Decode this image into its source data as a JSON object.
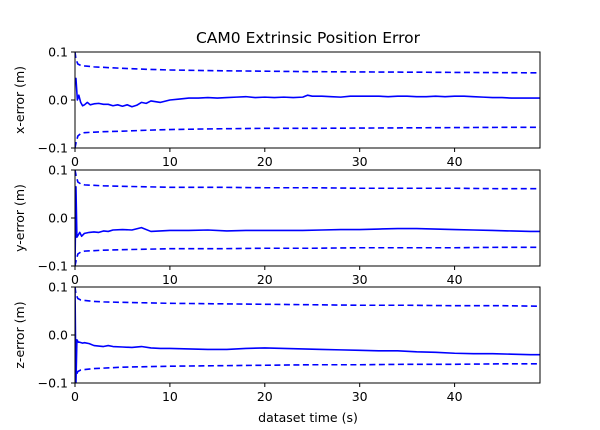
{
  "chart_data": {
    "type": "line",
    "title": "CAM0 Extrinsic Position Error",
    "xlabel": "dataset time (s)",
    "xlim": [
      0,
      49
    ],
    "xticks": [
      0,
      10,
      20,
      30,
      40
    ],
    "xtick_labels": [
      "0",
      "10",
      "20",
      "30",
      "40"
    ],
    "color": "#0000ff",
    "subplots": [
      {
        "ylabel": "x-error (m)",
        "ylim": [
          -0.1,
          0.1
        ],
        "yticks": [
          -0.1,
          0.0,
          0.1
        ],
        "ytick_labels": [
          "−0.1",
          "0.0",
          "0.1"
        ],
        "series": [
          {
            "style": "solid",
            "x": [
              0,
              0.1,
              0.25,
              0.4,
              0.6,
              0.8,
              1,
              1.3,
              1.6,
              2,
              2.5,
              3,
              3.5,
              4,
              4.5,
              5,
              5.5,
              6,
              6.5,
              7,
              7.5,
              8,
              9,
              10,
              11,
              12,
              13,
              14,
              15,
              16,
              17,
              18,
              19,
              20,
              21,
              22,
              23,
              24,
              24.5,
              25,
              26,
              27,
              28,
              29,
              30,
              31,
              32,
              33,
              34,
              35,
              36,
              37,
              38,
              39,
              40,
              41,
              42,
              43,
              44,
              45,
              46,
              47,
              48,
              49
            ],
            "y": [
              0.035,
              0.045,
              0.0,
              0.01,
              -0.005,
              -0.012,
              -0.01,
              -0.005,
              -0.01,
              -0.008,
              -0.007,
              -0.009,
              -0.009,
              -0.012,
              -0.01,
              -0.013,
              -0.01,
              -0.014,
              -0.011,
              -0.005,
              -0.007,
              -0.002,
              -0.005,
              0.0,
              0.002,
              0.004,
              0.004,
              0.005,
              0.004,
              0.005,
              0.006,
              0.007,
              0.005,
              0.006,
              0.005,
              0.006,
              0.005,
              0.006,
              0.01,
              0.008,
              0.008,
              0.007,
              0.006,
              0.008,
              0.008,
              0.008,
              0.008,
              0.007,
              0.008,
              0.008,
              0.007,
              0.007,
              0.008,
              0.007,
              0.008,
              0.008,
              0.007,
              0.006,
              0.005,
              0.005,
              0.004,
              0.004,
              0.004,
              0.004
            ]
          },
          {
            "style": "dashed",
            "x": [
              0,
              0.1,
              0.3,
              0.6,
              1,
              2,
              3,
              5,
              7.5,
              10,
              15,
              20,
              25,
              30,
              35,
              40,
              45,
              49
            ],
            "y": [
              0.1,
              0.085,
              0.075,
              0.072,
              0.071,
              0.069,
              0.068,
              0.066,
              0.064,
              0.0625,
              0.061,
              0.06,
              0.059,
              0.0585,
              0.058,
              0.0575,
              0.057,
              0.0565
            ]
          },
          {
            "style": "dashed",
            "x": [
              0,
              0.1,
              0.3,
              0.6,
              1,
              2,
              3,
              5,
              7.5,
              10,
              15,
              20,
              25,
              30,
              35,
              40,
              45,
              49
            ],
            "y": [
              -0.1,
              -0.09,
              -0.075,
              -0.07,
              -0.068,
              -0.067,
              -0.066,
              -0.065,
              -0.063,
              -0.0615,
              -0.06,
              -0.059,
              -0.059,
              -0.0585,
              -0.058,
              -0.0575,
              -0.057,
              -0.057
            ]
          }
        ]
      },
      {
        "ylabel": "y-error (m)",
        "ylim": [
          -0.1,
          0.1
        ],
        "yticks": [
          -0.1,
          0.0,
          0.1
        ],
        "ytick_labels": [
          "−0.1",
          "0.0",
          "0.1"
        ],
        "series": [
          {
            "style": "solid",
            "x": [
              0,
              0.1,
              0.2,
              0.35,
              0.5,
              0.7,
              1,
              1.5,
              2,
              2.5,
              3,
              3.5,
              4,
              5,
              6,
              7,
              8,
              9,
              10,
              12,
              14,
              16,
              18,
              20,
              22,
              24,
              26,
              28,
              30,
              32,
              34,
              36,
              38,
              40,
              42,
              44,
              46,
              48,
              49
            ],
            "y": [
              -0.1,
              0.065,
              -0.04,
              -0.035,
              -0.03,
              -0.038,
              -0.032,
              -0.03,
              -0.029,
              -0.03,
              -0.027,
              -0.028,
              -0.025,
              -0.024,
              -0.025,
              -0.02,
              -0.028,
              -0.027,
              -0.026,
              -0.026,
              -0.025,
              -0.027,
              -0.026,
              -0.026,
              -0.026,
              -0.026,
              -0.025,
              -0.024,
              -0.024,
              -0.023,
              -0.022,
              -0.022,
              -0.023,
              -0.024,
              -0.025,
              -0.026,
              -0.027,
              -0.028,
              -0.028
            ]
          },
          {
            "style": "dashed",
            "x": [
              0,
              0.1,
              0.3,
              0.6,
              1,
              2,
              3,
              5,
              7.5,
              10,
              15,
              20,
              25,
              30,
              35,
              40,
              45,
              49
            ],
            "y": [
              0.1,
              0.09,
              0.075,
              0.071,
              0.069,
              0.068,
              0.067,
              0.066,
              0.065,
              0.064,
              0.064,
              0.063,
              0.063,
              0.062,
              0.062,
              0.062,
              0.061,
              0.061
            ]
          },
          {
            "style": "dashed",
            "x": [
              0,
              0.1,
              0.3,
              0.6,
              1,
              2,
              3,
              5,
              7.5,
              10,
              15,
              20,
              25,
              30,
              35,
              40,
              45,
              49
            ],
            "y": [
              -0.1,
              -0.09,
              -0.075,
              -0.071,
              -0.069,
              -0.068,
              -0.067,
              -0.066,
              -0.065,
              -0.064,
              -0.064,
              -0.063,
              -0.063,
              -0.062,
              -0.062,
              -0.062,
              -0.061,
              -0.061
            ]
          }
        ]
      },
      {
        "ylabel": "z-error (m)",
        "ylim": [
          -0.1,
          0.1
        ],
        "yticks": [
          -0.1,
          0.0,
          0.1
        ],
        "ytick_labels": [
          "−0.1",
          "0.0",
          "0.1"
        ],
        "series": [
          {
            "style": "solid",
            "x": [
              0,
              0.1,
              0.2,
              0.35,
              0.5,
              0.8,
              1,
              1.5,
              2,
              2.5,
              3,
              3.5,
              4,
              5,
              6,
              7,
              8,
              9,
              10,
              12,
              14,
              16,
              18,
              20,
              22,
              24,
              26,
              28,
              30,
              32,
              34,
              36,
              38,
              40,
              42,
              44,
              46,
              48,
              49
            ],
            "y": [
              0.1,
              -0.1,
              -0.01,
              -0.015,
              -0.015,
              -0.017,
              -0.016,
              -0.018,
              -0.022,
              -0.023,
              -0.024,
              -0.022,
              -0.024,
              -0.025,
              -0.026,
              -0.024,
              -0.027,
              -0.028,
              -0.028,
              -0.029,
              -0.03,
              -0.03,
              -0.028,
              -0.027,
              -0.028,
              -0.029,
              -0.03,
              -0.031,
              -0.032,
              -0.033,
              -0.033,
              -0.035,
              -0.036,
              -0.038,
              -0.039,
              -0.039,
              -0.04,
              -0.041,
              -0.041
            ]
          },
          {
            "style": "dashed",
            "x": [
              0,
              0.1,
              0.3,
              0.6,
              1,
              2,
              3,
              5,
              7.5,
              10,
              15,
              20,
              25,
              30,
              35,
              40,
              45,
              49
            ],
            "y": [
              0.1,
              0.085,
              0.076,
              0.073,
              0.072,
              0.07,
              0.069,
              0.068,
              0.067,
              0.066,
              0.065,
              0.064,
              0.063,
              0.062,
              0.062,
              0.061,
              0.061,
              0.06
            ]
          },
          {
            "style": "dashed",
            "x": [
              0,
              0.1,
              0.3,
              0.6,
              1,
              2,
              3,
              5,
              7.5,
              10,
              15,
              20,
              25,
              30,
              35,
              40,
              45,
              49
            ],
            "y": [
              -0.1,
              -0.085,
              -0.076,
              -0.073,
              -0.072,
              -0.07,
              -0.069,
              -0.067,
              -0.066,
              -0.065,
              -0.064,
              -0.063,
              -0.062,
              -0.062,
              -0.061,
              -0.061,
              -0.06,
              -0.06
            ]
          }
        ]
      }
    ]
  }
}
